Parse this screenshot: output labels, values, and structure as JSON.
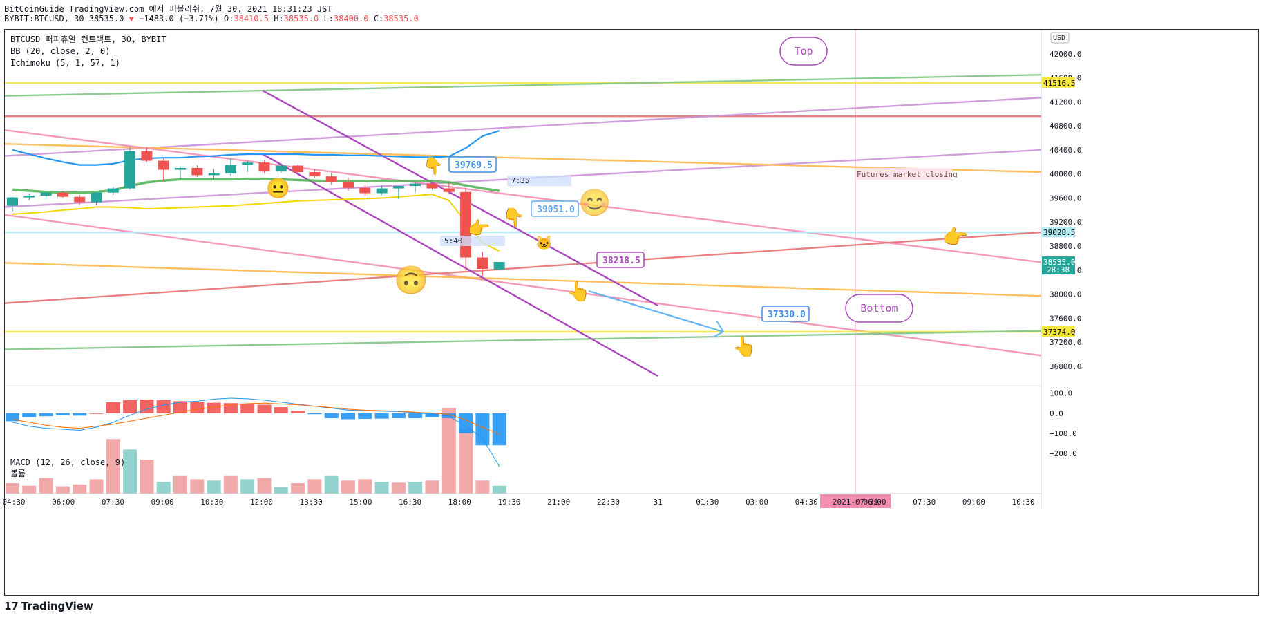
{
  "header": {
    "line1": "BitCoinGuide TradingView.com 에서 퍼블리쉬, 7월 30, 2021 18:31:23 JST",
    "symbol": "BYBIT:BTCUSD, 30 38535.0",
    "change": "−1483.0 (−3.71%)",
    "o_label": "O:",
    "o_value": "38410.5",
    "h_label": "H:",
    "h_value": "38535.0",
    "l_label": "L:",
    "l_value": "38400.0",
    "c_label": "C:",
    "c_value": "38535.0"
  },
  "legend": {
    "title": "BTCUSD 퍼피츄얼 컨트랙트, 30, BYBIT",
    "bb": "BB (20, close, 2, 0)",
    "ichimoku": "Ichimoku (5, 1, 57, 1)",
    "macd": "MACD (12, 26, close, 9)",
    "volume": "볼륨"
  },
  "footer": {
    "logo_text": "TradingView"
  },
  "colors": {
    "up": "#26a69a",
    "down": "#ef5350",
    "bb_upper": "#2196f3",
    "bb_lower": "#ffeb3b",
    "green": "#4caf50",
    "orange": "#ff9800",
    "red": "#f44336",
    "pink": "#f48fb1",
    "lilac": "#ce93d8",
    "purple": "#ab47bc",
    "yellow": "#f5e642",
    "note_blue": "#64b5f6"
  },
  "chart_data": {
    "type": "candlestick",
    "price_axis": {
      "currency": "USD",
      "ylim": [
        36500,
        42400
      ],
      "ticks": [
        "42000.0",
        "41600.0",
        "41200.0",
        "40800.0",
        "40400.0",
        "40000.0",
        "39600.0",
        "39200.0",
        "38800.0",
        "38400.0",
        "38000.0",
        "37600.0",
        "37200.0",
        "36800.0"
      ]
    },
    "price_badges": [
      {
        "value": "41516.5",
        "color": "#f5e642",
        "text_color": "#000000"
      },
      {
        "value": "39028.5",
        "color": "#b2ebf2",
        "text_color": "#000000"
      },
      {
        "value": "38535.0",
        "sub": "28:38",
        "color": "#26a69a",
        "text_color": "#ffffff"
      },
      {
        "value": "37374.0",
        "color": "#f5e642",
        "text_color": "#000000"
      }
    ],
    "time_axis": {
      "labels": [
        "04:30",
        "06:00",
        "07:30",
        "09:00",
        "10:30",
        "12:00",
        "13:30",
        "15:00",
        "16:30",
        "18:00",
        "19:30",
        "21:00",
        "22:30",
        "31",
        "01:30",
        "03:00",
        "04:30",
        "2021-07-31",
        "06:00",
        "07:30",
        "09:00",
        "10:30"
      ],
      "highlighted": "2021-07-31"
    },
    "candles": [
      {
        "o": 39470,
        "h": 39620,
        "l": 39380,
        "c": 39610
      },
      {
        "o": 39610,
        "h": 39680,
        "l": 39560,
        "c": 39640
      },
      {
        "o": 39640,
        "h": 39700,
        "l": 39580,
        "c": 39690
      },
      {
        "o": 39690,
        "h": 39720,
        "l": 39600,
        "c": 39620
      },
      {
        "o": 39620,
        "h": 39650,
        "l": 39480,
        "c": 39530
      },
      {
        "o": 39530,
        "h": 39700,
        "l": 39480,
        "c": 39690
      },
      {
        "o": 39690,
        "h": 39780,
        "l": 39650,
        "c": 39760
      },
      {
        "o": 39760,
        "h": 40450,
        "l": 39740,
        "c": 40380
      },
      {
        "o": 40380,
        "h": 40440,
        "l": 40200,
        "c": 40220
      },
      {
        "o": 40220,
        "h": 40260,
        "l": 39880,
        "c": 40070
      },
      {
        "o": 40070,
        "h": 40130,
        "l": 39900,
        "c": 40100
      },
      {
        "o": 40100,
        "h": 40150,
        "l": 39950,
        "c": 39980
      },
      {
        "o": 39980,
        "h": 40080,
        "l": 39900,
        "c": 40010
      },
      {
        "o": 40010,
        "h": 40260,
        "l": 39960,
        "c": 40150
      },
      {
        "o": 40150,
        "h": 40220,
        "l": 40030,
        "c": 40190
      },
      {
        "o": 40190,
        "h": 40220,
        "l": 40020,
        "c": 40040
      },
      {
        "o": 40040,
        "h": 40170,
        "l": 40010,
        "c": 40140
      },
      {
        "o": 40140,
        "h": 40160,
        "l": 40010,
        "c": 40030
      },
      {
        "o": 40030,
        "h": 40080,
        "l": 39930,
        "c": 39960
      },
      {
        "o": 39960,
        "h": 40020,
        "l": 39820,
        "c": 39860
      },
      {
        "o": 39860,
        "h": 39940,
        "l": 39720,
        "c": 39770
      },
      {
        "o": 39770,
        "h": 39830,
        "l": 39630,
        "c": 39680
      },
      {
        "o": 39680,
        "h": 39810,
        "l": 39650,
        "c": 39760
      },
      {
        "o": 39760,
        "h": 39800,
        "l": 39580,
        "c": 39800
      },
      {
        "o": 39800,
        "h": 39860,
        "l": 39700,
        "c": 39840
      },
      {
        "o": 39840,
        "h": 39900,
        "l": 39740,
        "c": 39760
      },
      {
        "o": 39760,
        "h": 39880,
        "l": 39660,
        "c": 39700
      },
      {
        "o": 39700,
        "h": 39770,
        "l": 38400,
        "c": 38610
      },
      {
        "o": 38610,
        "h": 38700,
        "l": 38300,
        "c": 38420
      },
      {
        "o": 38410.5,
        "h": 38535,
        "l": 38400,
        "c": 38535
      }
    ],
    "bb_upper": [
      40400,
      40330,
      40260,
      40200,
      40150,
      40150,
      40170,
      40230,
      40260,
      40270,
      40270,
      40290,
      40300,
      40320,
      40330,
      40330,
      40330,
      40330,
      40320,
      40320,
      40310,
      40310,
      40300,
      40290,
      40280,
      40280,
      40290,
      40430,
      40630,
      40720
    ],
    "bb_lower": [
      39330,
      39350,
      39370,
      39400,
      39420,
      39450,
      39450,
      39440,
      39420,
      39430,
      39440,
      39450,
      39460,
      39470,
      39490,
      39510,
      39530,
      39550,
      39560,
      39570,
      39580,
      39590,
      39600,
      39620,
      39640,
      39660,
      39560,
      39200,
      38850,
      38720
    ],
    "ichimoku_green": [
      39740,
      39720,
      39700,
      39690,
      39690,
      39700,
      39730,
      39800,
      39860,
      39890,
      39910,
      39910,
      39910,
      39910,
      39920,
      39920,
      39910,
      39900,
      39890,
      39880,
      39880,
      39880,
      39890,
      39880,
      39880,
      39880,
      39860,
      39810,
      39760,
      39720
    ],
    "lines": [
      {
        "color": "#f5e642",
        "y1": 41516.5,
        "y2": 41516.5
      },
      {
        "color": "#81c784",
        "y1": 41300,
        "y2": 41650
      },
      {
        "color": "#e57373",
        "y1": 40960,
        "y2": 40960
      },
      {
        "color": "#ce93d8",
        "y1": 40300,
        "y2": 41270
      },
      {
        "color": "#ce93d8",
        "y1": 39450,
        "y2": 40400
      },
      {
        "color": "#ffb74d",
        "y1": 40500,
        "y2": 40030
      },
      {
        "color": "#f48fb1",
        "y1": 40730,
        "y2": 38530
      },
      {
        "color": "#f48fb1",
        "y1": 39320,
        "y2": 36980
      },
      {
        "color": "#b2ebf2",
        "y1": 39028.5,
        "y2": 39028.5
      },
      {
        "color": "#ffb74d",
        "y1": 38520,
        "y2": 37970
      },
      {
        "color": "#e57373",
        "y1": 37850,
        "y2": 39030
      },
      {
        "color": "#f5e642",
        "y1": 37374,
        "y2": 37374
      },
      {
        "color": "#81c784",
        "y1": 37080,
        "y2": 37390
      }
    ],
    "annotations": {
      "top": "Top",
      "bottom": "Bottom",
      "p1": "39769.5",
      "p2": "39051.0",
      "p3": "38218.5",
      "p4": "37330.0",
      "t1": "7:35",
      "t2": "5:40",
      "note": "Futures market closing"
    },
    "macd": {
      "ylim": [
        -400,
        130
      ],
      "ticks": [
        "100.0",
        "0.0",
        "−100.0",
        "−200.0"
      ],
      "histogram": [
        -40,
        -20,
        -15,
        -10,
        -12,
        0,
        55,
        65,
        68,
        65,
        60,
        55,
        52,
        50,
        48,
        42,
        30,
        12,
        -5,
        -25,
        -30,
        -28,
        -27,
        -25,
        -25,
        -20,
        -25,
        -100,
        -160,
        -160
      ],
      "macd_line": [
        -45,
        -65,
        -75,
        -80,
        -85,
        -70,
        -45,
        -10,
        20,
        40,
        55,
        60,
        70,
        75,
        72,
        65,
        55,
        45,
        35,
        25,
        15,
        12,
        10,
        8,
        3,
        -5,
        -15,
        -65,
        -125,
        -265
      ],
      "signal_line": [
        -30,
        -45,
        -60,
        -70,
        -75,
        -65,
        -55,
        -40,
        -25,
        -10,
        5,
        20,
        30,
        42,
        48,
        50,
        46,
        42,
        35,
        28,
        20,
        15,
        12,
        10,
        5,
        0,
        -5,
        -35,
        -70,
        -105
      ]
    },
    "volume": [
      40,
      30,
      60,
      28,
      35,
      55,
      210,
      170,
      130,
      45,
      70,
      55,
      50,
      70,
      55,
      60,
      25,
      40,
      55,
      70,
      50,
      55,
      45,
      42,
      45,
      50,
      330,
      250,
      50,
      30
    ]
  }
}
